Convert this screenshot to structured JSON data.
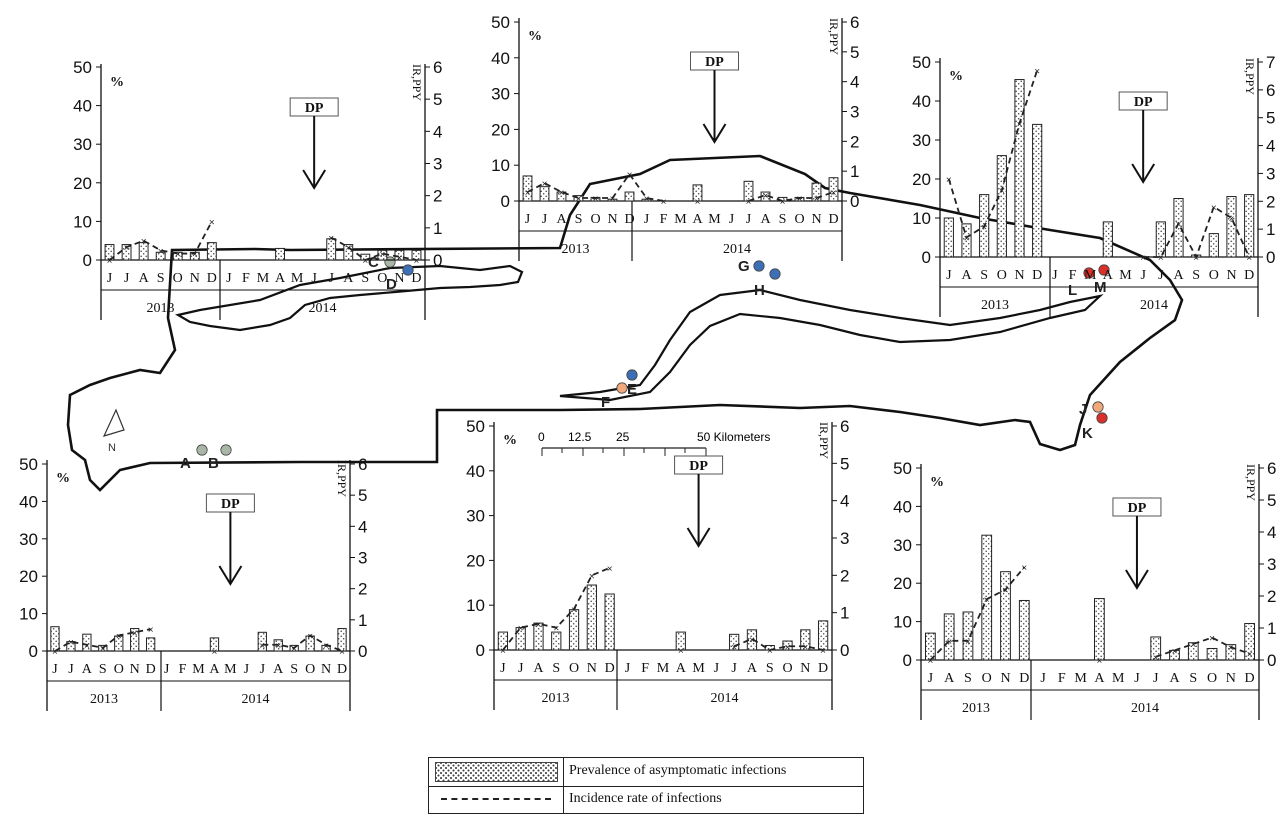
{
  "legend": {
    "prevalence_label": "Prevalence of asymptomatic infections",
    "incidence_label": "Incidence rate of infections"
  },
  "map": {
    "scale_label": "50 Kilometers",
    "scale_ticks": [
      "0",
      "12.5",
      "25"
    ],
    "north_label": "N",
    "sites": [
      {
        "label": "A",
        "color": "#a9b8a6"
      },
      {
        "label": "B",
        "color": "#a9b8a6"
      },
      {
        "label": "C",
        "color": "#a9b8a6"
      },
      {
        "label": "D",
        "color": "#3d6fb6"
      },
      {
        "label": "E",
        "color": "#3d6fb6"
      },
      {
        "label": "F",
        "color": "#f1a97c"
      },
      {
        "label": "G",
        "color": "#3d6fb6"
      },
      {
        "label": "H",
        "color": "#3d6fb6"
      },
      {
        "label": "J",
        "color": "#f1a97c"
      },
      {
        "label": "K",
        "color": "#d9302a"
      },
      {
        "label": "L",
        "color": "#d9302a"
      },
      {
        "label": "M",
        "color": "#d9302a"
      }
    ]
  },
  "chart_data": [
    {
      "type": "bar",
      "panel": "top-left",
      "categories": [
        "J",
        "J",
        "A",
        "S",
        "O",
        "N",
        "D",
        "J",
        "F",
        "M",
        "A",
        "M",
        "J",
        "J",
        "A",
        "S",
        "O",
        "N",
        "D"
      ],
      "years": [
        "2013",
        "2014"
      ],
      "prevalence": [
        4,
        4,
        4.5,
        2,
        2,
        2,
        4.5,
        null,
        null,
        null,
        3,
        null,
        null,
        5.5,
        4,
        1.5,
        2.5,
        2.5,
        2.5
      ],
      "incidence": [
        0,
        0.4,
        0.6,
        0.3,
        0.2,
        0.2,
        1.2,
        null,
        null,
        null,
        null,
        null,
        null,
        0.7,
        0.4,
        0,
        0.2,
        0.1,
        0
      ],
      "ylabel_left": "%",
      "ylabel_right": "IR,PPY",
      "ylim_left": [
        0,
        50
      ],
      "ylim_right": [
        0,
        6
      ],
      "yticks_left": [
        "0",
        "10",
        "20",
        "30",
        "40",
        "50"
      ],
      "yticks_right": [
        "0",
        "1",
        "2",
        "3",
        "4",
        "5",
        "6"
      ],
      "annotation": "DP",
      "annotation_month_index": 12
    },
    {
      "type": "bar",
      "panel": "top-center",
      "categories": [
        "J",
        "J",
        "A",
        "S",
        "O",
        "N",
        "D",
        "J",
        "F",
        "M",
        "A",
        "M",
        "J",
        "J",
        "A",
        "S",
        "O",
        "N",
        "D"
      ],
      "years": [
        "2013",
        "2014"
      ],
      "prevalence": [
        7,
        4,
        2.5,
        1.5,
        1,
        0.5,
        2.5,
        0.5,
        null,
        null,
        4.5,
        null,
        null,
        5.5,
        2.5,
        1,
        1,
        5,
        6.5
      ],
      "incidence": [
        0.3,
        0.6,
        0.3,
        0.1,
        0.1,
        0.1,
        0.9,
        0.1,
        0,
        null,
        0,
        null,
        null,
        0,
        0.2,
        0,
        0.1,
        0.1,
        0.3
      ],
      "ylabel_left": "%",
      "ylabel_right": "IR,PPY",
      "ylim_left": [
        0,
        50
      ],
      "ylim_right": [
        0,
        6
      ],
      "yticks_left": [
        "0",
        "10",
        "20",
        "30",
        "40",
        "50"
      ],
      "yticks_right": [
        "0",
        "1",
        "2",
        "3",
        "4",
        "5",
        "6"
      ],
      "annotation": "DP",
      "annotation_month_index": 11
    },
    {
      "type": "bar",
      "panel": "top-right",
      "categories": [
        "J",
        "A",
        "S",
        "O",
        "N",
        "D",
        "J",
        "F",
        "M",
        "A",
        "M",
        "J",
        "J",
        "A",
        "S",
        "O",
        "N",
        "D"
      ],
      "years": [
        "2013",
        "2014"
      ],
      "prevalence": [
        10,
        8.5,
        16,
        26,
        45.5,
        34,
        null,
        null,
        null,
        9,
        null,
        null,
        9,
        15,
        0.5,
        6,
        15.5,
        16
      ],
      "incidence": [
        2.8,
        0.7,
        1.1,
        2.4,
        4.8,
        6.7,
        null,
        null,
        null,
        null,
        null,
        0,
        0,
        1.2,
        0,
        1.8,
        1.4,
        0
      ],
      "ylabel_left": "%",
      "ylabel_right": "IR,PPY",
      "ylim_left": [
        0,
        50
      ],
      "ylim_right": [
        0,
        7
      ],
      "yticks_left": [
        "0",
        "10",
        "20",
        "30",
        "40",
        "50"
      ],
      "yticks_right": [
        "0",
        "1",
        "2",
        "3",
        "4",
        "5",
        "6",
        "7"
      ],
      "annotation": "DP",
      "annotation_month_index": 11
    },
    {
      "type": "bar",
      "panel": "bottom-left",
      "categories": [
        "J",
        "J",
        "A",
        "S",
        "O",
        "N",
        "D",
        "J",
        "F",
        "M",
        "A",
        "M",
        "J",
        "J",
        "A",
        "S",
        "O",
        "N",
        "D"
      ],
      "years": [
        "2013",
        "2014"
      ],
      "prevalence": [
        6.5,
        2.5,
        4.5,
        1.5,
        4,
        6,
        3.5,
        null,
        null,
        null,
        3.5,
        null,
        null,
        5,
        3,
        1.5,
        4,
        1.5,
        6
      ],
      "incidence": [
        0,
        0.3,
        0.2,
        0.1,
        0.5,
        0.6,
        0.7,
        null,
        null,
        null,
        0,
        null,
        null,
        0.2,
        0.2,
        0.1,
        0.5,
        0.2,
        0
      ],
      "ylabel_left": "%",
      "ylabel_right": "IR,PPY",
      "ylim_left": [
        0,
        50
      ],
      "ylim_right": [
        0,
        6
      ],
      "yticks_left": [
        "0",
        "10",
        "20",
        "30",
        "40",
        "50"
      ],
      "yticks_right": [
        "0",
        "1",
        "2",
        "3",
        "4",
        "5",
        "6"
      ],
      "annotation": "DP",
      "annotation_month_index": 11
    },
    {
      "type": "bar",
      "panel": "bottom-center",
      "categories": [
        "J",
        "J",
        "A",
        "S",
        "O",
        "N",
        "D",
        "J",
        "F",
        "M",
        "A",
        "M",
        "J",
        "J",
        "A",
        "S",
        "O",
        "N",
        "D"
      ],
      "years": [
        "2013",
        "2014"
      ],
      "prevalence": [
        4,
        5,
        6,
        4,
        9,
        14.5,
        12.5,
        null,
        null,
        null,
        4,
        null,
        null,
        3.5,
        4.5,
        1,
        2,
        4.5,
        6.5
      ],
      "incidence": [
        0,
        0.6,
        0.7,
        0.6,
        1.1,
        2,
        2.2,
        null,
        null,
        null,
        0,
        null,
        null,
        0.1,
        0.3,
        0,
        0.1,
        0.1,
        0
      ],
      "ylabel_left": "%",
      "ylabel_right": "IR,PPY",
      "ylim_left": [
        0,
        50
      ],
      "ylim_right": [
        0,
        6
      ],
      "yticks_left": [
        "0",
        "10",
        "20",
        "30",
        "40",
        "50"
      ],
      "yticks_right": [
        "0",
        "1",
        "2",
        "3",
        "4",
        "5",
        "6"
      ],
      "annotation": "DP",
      "annotation_month_index": 11
    },
    {
      "type": "bar",
      "panel": "bottom-right",
      "categories": [
        "J",
        "A",
        "S",
        "O",
        "N",
        "D",
        "J",
        "F",
        "M",
        "A",
        "M",
        "J",
        "J",
        "A",
        "S",
        "O",
        "N",
        "D"
      ],
      "years": [
        "2013",
        "2014"
      ],
      "prevalence": [
        7,
        12,
        12.5,
        32.5,
        23,
        15.5,
        null,
        null,
        null,
        16,
        null,
        null,
        6,
        2.5,
        4.5,
        3,
        4,
        9.5
      ],
      "incidence": [
        0,
        0.6,
        0.6,
        1.9,
        2.2,
        2.9,
        null,
        null,
        null,
        0,
        null,
        null,
        0.1,
        0.3,
        0.5,
        0.7,
        0.4,
        0.2
      ],
      "ylabel_left": "%",
      "ylabel_right": "IR,PPY",
      "ylim_left": [
        0,
        50
      ],
      "ylim_right": [
        0,
        6
      ],
      "yticks_left": [
        "0",
        "10",
        "20",
        "30",
        "40",
        "50"
      ],
      "yticks_right": [
        "0",
        "1",
        "2",
        "3",
        "4",
        "5",
        "6"
      ],
      "annotation": "DP",
      "annotation_month_index": 11
    }
  ]
}
